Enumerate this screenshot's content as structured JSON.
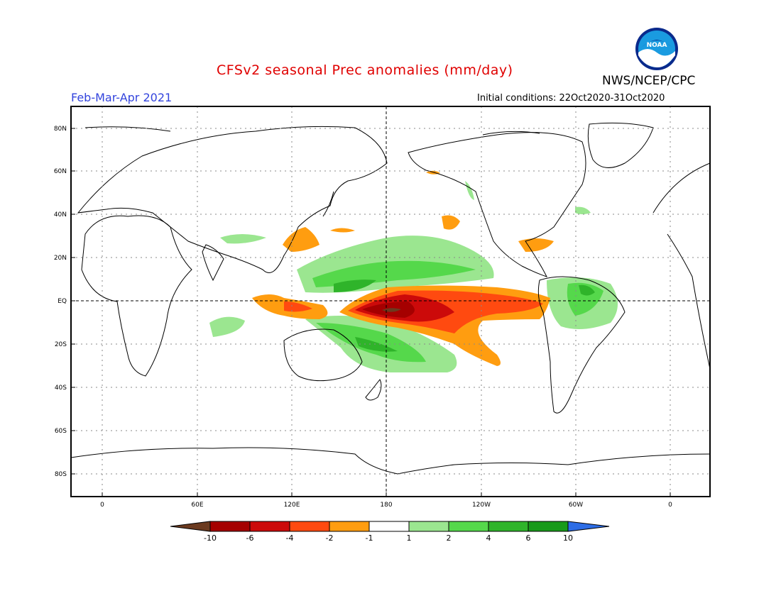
{
  "header": {
    "title": "CFSv2 seasonal Prec anomalies (mm/day)",
    "period": "Feb-Mar-Apr 2021",
    "initial_conditions": "Initial conditions: 22Oct2020-31Oct2020",
    "agency": "NWS/NCEP/CPC",
    "logo_text": "NOAA"
  },
  "map": {
    "lat_labels": [
      "80N",
      "60N",
      "40N",
      "20N",
      "EQ",
      "20S",
      "40S",
      "60S",
      "80S"
    ],
    "lon_labels": [
      "0",
      "60E",
      "120E",
      "180",
      "120W",
      "60W",
      "0"
    ]
  },
  "colorbar": {
    "labels": [
      "-10",
      "-6",
      "-4",
      "-2",
      "-1",
      "1",
      "2",
      "4",
      "6",
      "10"
    ],
    "colors": [
      "#6b3a1f",
      "#a50000",
      "#cc0a0a",
      "#ff4a10",
      "#ff9d10",
      "#ffffff",
      "#9be690",
      "#55d84b",
      "#2fb42a",
      "#189a1a",
      "#2d6de6"
    ]
  }
}
